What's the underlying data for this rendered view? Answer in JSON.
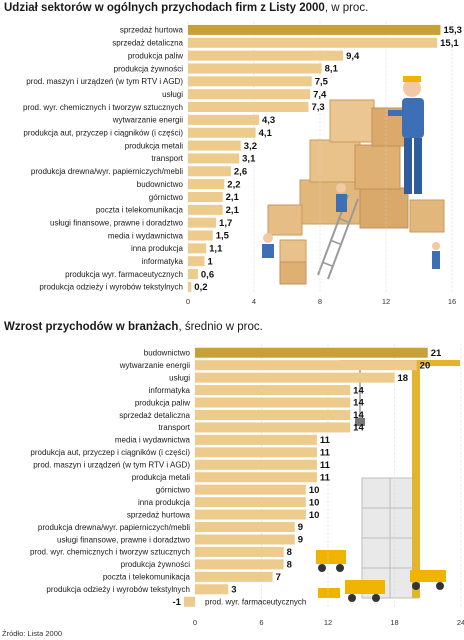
{
  "chart1": {
    "title_bold": "Udział sektorów w ogólnych przychodach firm z Listy 2000",
    "title_rest": ", w proc.",
    "chart_data": {
      "type": "bar",
      "orientation": "horizontal",
      "categories": [
        "sprzedaż hurtowa",
        "sprzedaż detaliczna",
        "produkcja paliw",
        "produkcja żywności",
        "prod. maszyn i urządzeń (w tym RTV i AGD)",
        "usługi",
        "prod. wyr. chemicznych i tworzyw sztucznych",
        "wytwarzanie energii",
        "produkcja aut, przyczep i ciągników (i części)",
        "produkcja metali",
        "transport",
        "produkcja drewna/wyr. papierniczych/mebli",
        "budownictwo",
        "górnictwo",
        "poczta i telekomunikacja",
        "usługi finansowe, prawne i doradztwo",
        "media i wydawnictwa",
        "inna produkcja",
        "informatyka",
        "produkcja wyr. farmaceutycznych",
        "produkcja odzieży i wyrobów tekstylnych"
      ],
      "values": [
        15.3,
        15.1,
        9.4,
        8.1,
        7.5,
        7.4,
        7.3,
        4.3,
        4.1,
        3.2,
        3.1,
        2.6,
        2.2,
        2.1,
        2.1,
        1.7,
        1.5,
        1.1,
        1,
        0.6,
        0.2
      ],
      "value_labels": [
        "15,3",
        "15,1",
        "9,4",
        "8,1",
        "7,5",
        "7,4",
        "7,3",
        "4,3",
        "4,1",
        "3,2",
        "3,1",
        "2,6",
        "2,2",
        "2,1",
        "2,1",
        "1,7",
        "1,5",
        "1,1",
        "1",
        "0,6",
        "0,2"
      ],
      "xlim": [
        0,
        16
      ],
      "xticks": [
        "0",
        "4",
        "8",
        "12",
        "16"
      ],
      "colors": {
        "highlight": "#c8a03a",
        "bar": "#eccb8c"
      }
    }
  },
  "chart2": {
    "title_bold": "Wzrost przychodów w branżach",
    "title_rest": ", średnio w proc.",
    "chart_data": {
      "type": "bar",
      "orientation": "horizontal",
      "categories": [
        "budownictwo",
        "wytwarzanie energii",
        "usługi",
        "informatyka",
        "produkcja paliw",
        "sprzedaż detaliczna",
        "transport",
        "media i wydawnictwa",
        "produkcja aut, przyczep i ciągników (i części)",
        "prod. maszyn i urządzeń (w tym RTV i AGD)",
        "produkcja metali",
        "górnictwo",
        "inna produkcja",
        "sprzedaż hurtowa",
        "produkcja drewna/wyr. papierniczych/mebli",
        "usługi finansowe, prawne i doradztwo",
        "prod. wyr. chemicznych i tworzyw sztucznych",
        "produkcja żywności",
        "poczta i telekomunikacja",
        "produkcja odzieży i wyrobów tekstylnych",
        "prod. wyr. farmaceutycznych"
      ],
      "values": [
        21,
        20,
        18,
        14,
        14,
        14,
        14,
        11,
        11,
        11,
        11,
        10,
        10,
        10,
        9,
        9,
        8,
        8,
        7,
        3,
        -1
      ],
      "value_labels": [
        "21",
        "20",
        "18",
        "14",
        "14",
        "14",
        "14",
        "11",
        "11",
        "11",
        "11",
        "10",
        "10",
        "10",
        "9",
        "9",
        "8",
        "8",
        "7",
        "3",
        "-1"
      ],
      "xlim": [
        0,
        24
      ],
      "xticks": [
        "0",
        "6",
        "12",
        "18",
        "24"
      ],
      "colors": {
        "highlight": "#c8a03a",
        "bar": "#eccb8c"
      }
    }
  },
  "source": "Źródło: Lista 2000"
}
